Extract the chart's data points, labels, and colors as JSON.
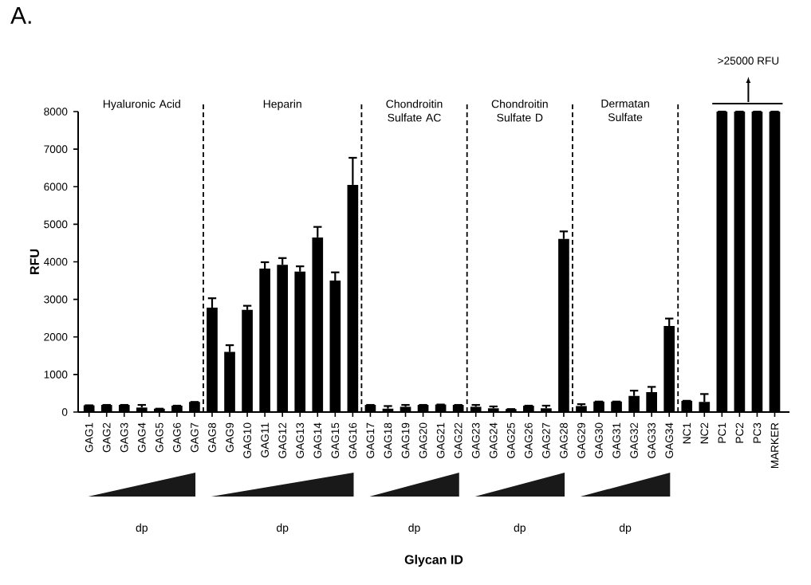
{
  "chart_data": {
    "type": "bar",
    "title": "A.",
    "ylabel": "RFU",
    "color": "#000000",
    "categories": [
      "GAG1",
      "GAG2",
      "GAG3",
      "GAG4",
      "GAG5",
      "GAG6",
      "GAG7",
      "GAG8",
      "GAG9",
      "GAG10",
      "GAG11",
      "GAG12",
      "GAG13",
      "GAG14",
      "GAG15",
      "GAG16",
      "GAG17",
      "GAG18",
      "GAG19",
      "GAG20",
      "GAG21",
      "GAG22",
      "GAG23",
      "GAG24",
      "GAG25",
      "GAG26",
      "GAG27",
      "GAG28",
      "GAG29",
      "GAG30",
      "GAG31",
      "GAG32",
      "GAG33",
      "GAG34",
      "NC1",
      "NC2",
      "PC1",
      "PC2",
      "PC3",
      "MARKER"
    ],
    "values": [
      180,
      190,
      190,
      120,
      90,
      170,
      270,
      2780,
      1600,
      2720,
      3820,
      3920,
      3740,
      4650,
      3500,
      6050,
      190,
      90,
      140,
      190,
      200,
      190,
      140,
      100,
      80,
      170,
      100,
      4610,
      160,
      280,
      280,
      430,
      530,
      2290,
      300,
      270,
      8000,
      8000,
      8000,
      8000
    ],
    "errors": [
      null,
      null,
      null,
      70,
      null,
      null,
      null,
      250,
      180,
      110,
      170,
      180,
      140,
      280,
      220,
      720,
      null,
      70,
      50,
      null,
      null,
      null,
      50,
      50,
      null,
      null,
      70,
      200,
      50,
      null,
      null,
      140,
      140,
      200,
      null,
      210,
      null,
      null,
      null,
      null
    ],
    "ylim": [
      0,
      8000
    ],
    "yticks": [
      0,
      1000,
      2000,
      3000,
      4000,
      5000,
      6000,
      7000,
      8000
    ],
    "grid": false,
    "annotations": [
      "Hyaluronic Acid",
      "Heparin",
      "Chondroitin Sulfate AC",
      "Chondroitin Sulfate D",
      "Dermatan Sulfate",
      "dp",
      "dp",
      "dp",
      "dp",
      "dp",
      ">25000 RFU",
      "Glycan ID"
    ]
  }
}
